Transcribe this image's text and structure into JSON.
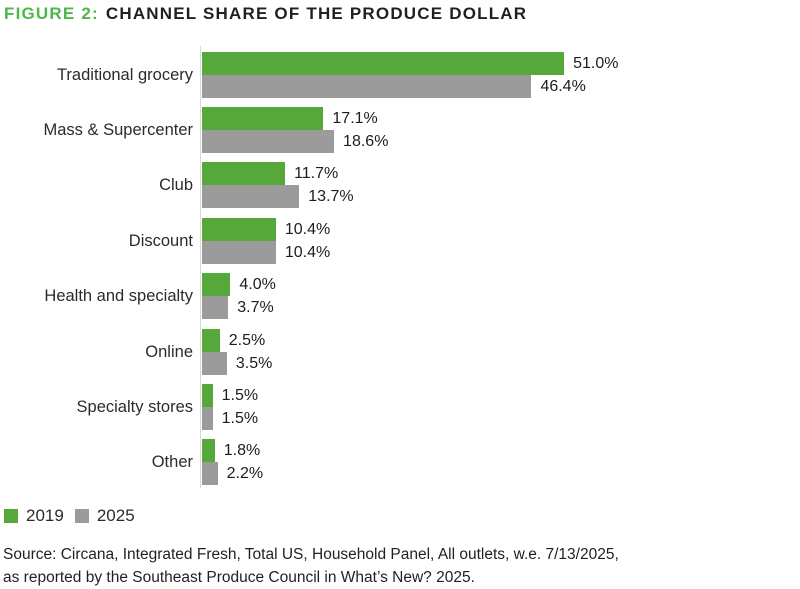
{
  "title": {
    "figure_label": "FIGURE 2:",
    "text": "CHANNEL SHARE OF THE PRODUCE DOLLAR"
  },
  "legend": [
    {
      "label": "2019",
      "color": "#57a83b"
    },
    {
      "label": "2025",
      "color": "#9b9b9b"
    }
  ],
  "source": {
    "line1": "Source: Circana, Integrated Fresh, Total US, Household Panel, All outlets, w.e. 7/13/2025,",
    "line2": "as reported by the Southeast Produce Council in What’s New? 2025."
  },
  "colors": {
    "title_accent": "#4db748",
    "title_text": "#231f20",
    "bar_2019": "#57a83b",
    "bar_2025": "#9b9b9b",
    "axis_line": "#d9d9d9"
  },
  "chart_data": {
    "type": "bar",
    "orientation": "horizontal",
    "title": "FIGURE 2: CHANNEL SHARE OF THE PRODUCE DOLLAR",
    "categories": [
      "Traditional grocery",
      "Mass & Supercenter",
      "Club",
      "Discount",
      "Health and specialty",
      "Online",
      "Specialty stores",
      "Other"
    ],
    "series": [
      {
        "name": "2019",
        "color": "#57a83b",
        "values": [
          51.0,
          17.1,
          11.7,
          10.4,
          4.0,
          2.5,
          1.5,
          1.8
        ],
        "labels": [
          "51.0%",
          "17.1%",
          "11.7%",
          "10.4%",
          "4.0%",
          "2.5%",
          "1.5%",
          "1.8%"
        ]
      },
      {
        "name": "2025",
        "color": "#9b9b9b",
        "values": [
          46.4,
          18.6,
          13.7,
          10.4,
          3.7,
          3.5,
          1.5,
          2.2
        ],
        "labels": [
          "46.4%",
          "18.6%",
          "13.7%",
          "10.4%",
          "3.7%",
          "3.5%",
          "1.5%",
          "2.2%"
        ]
      }
    ],
    "xlim": [
      0,
      51
    ],
    "grid": false,
    "value_labels": "outside-end",
    "legend_position": "bottom-left",
    "xlabel": "",
    "ylabel": ""
  }
}
